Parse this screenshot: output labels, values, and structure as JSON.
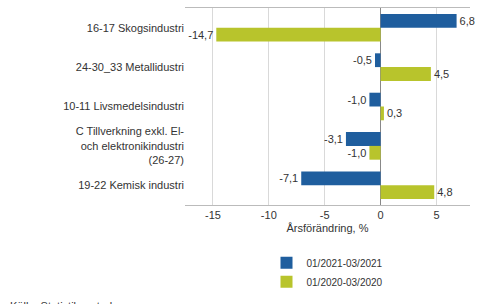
{
  "chart_data": {
    "type": "bar",
    "orientation": "horizontal",
    "categories": [
      "16-17 Skogsindustri",
      "24-30_33 Metallidustri",
      "10-11 Livsmedelsindustri",
      "C Tillverkning exkl. El- och elektronikindustri (26-27)",
      "19-22 Kemisk industri"
    ],
    "series": [
      {
        "name": "01/2021-03/2021",
        "color": "#1f5e9e",
        "values": [
          6.8,
          -0.5,
          -1.0,
          -3.1,
          -7.1
        ],
        "value_labels": [
          "6,8",
          "-0,5",
          "-1,0",
          "-3,1",
          "-7,1"
        ]
      },
      {
        "name": "01/2020-03/2020",
        "color": "#b8c42c",
        "values": [
          -14.7,
          4.5,
          0.3,
          -1.0,
          4.8
        ],
        "value_labels": [
          "-14,7",
          "4,5",
          "0,3",
          "-1,0",
          "4,8"
        ]
      }
    ],
    "x_label": "Årsförändring, %",
    "xlim": [
      -17.5,
      8
    ],
    "xticks": [
      -15,
      -10,
      -5,
      0,
      5
    ],
    "grid": true,
    "legend": "bottom",
    "data_labels": true,
    "source": "Källa: Statistikcentralen"
  }
}
